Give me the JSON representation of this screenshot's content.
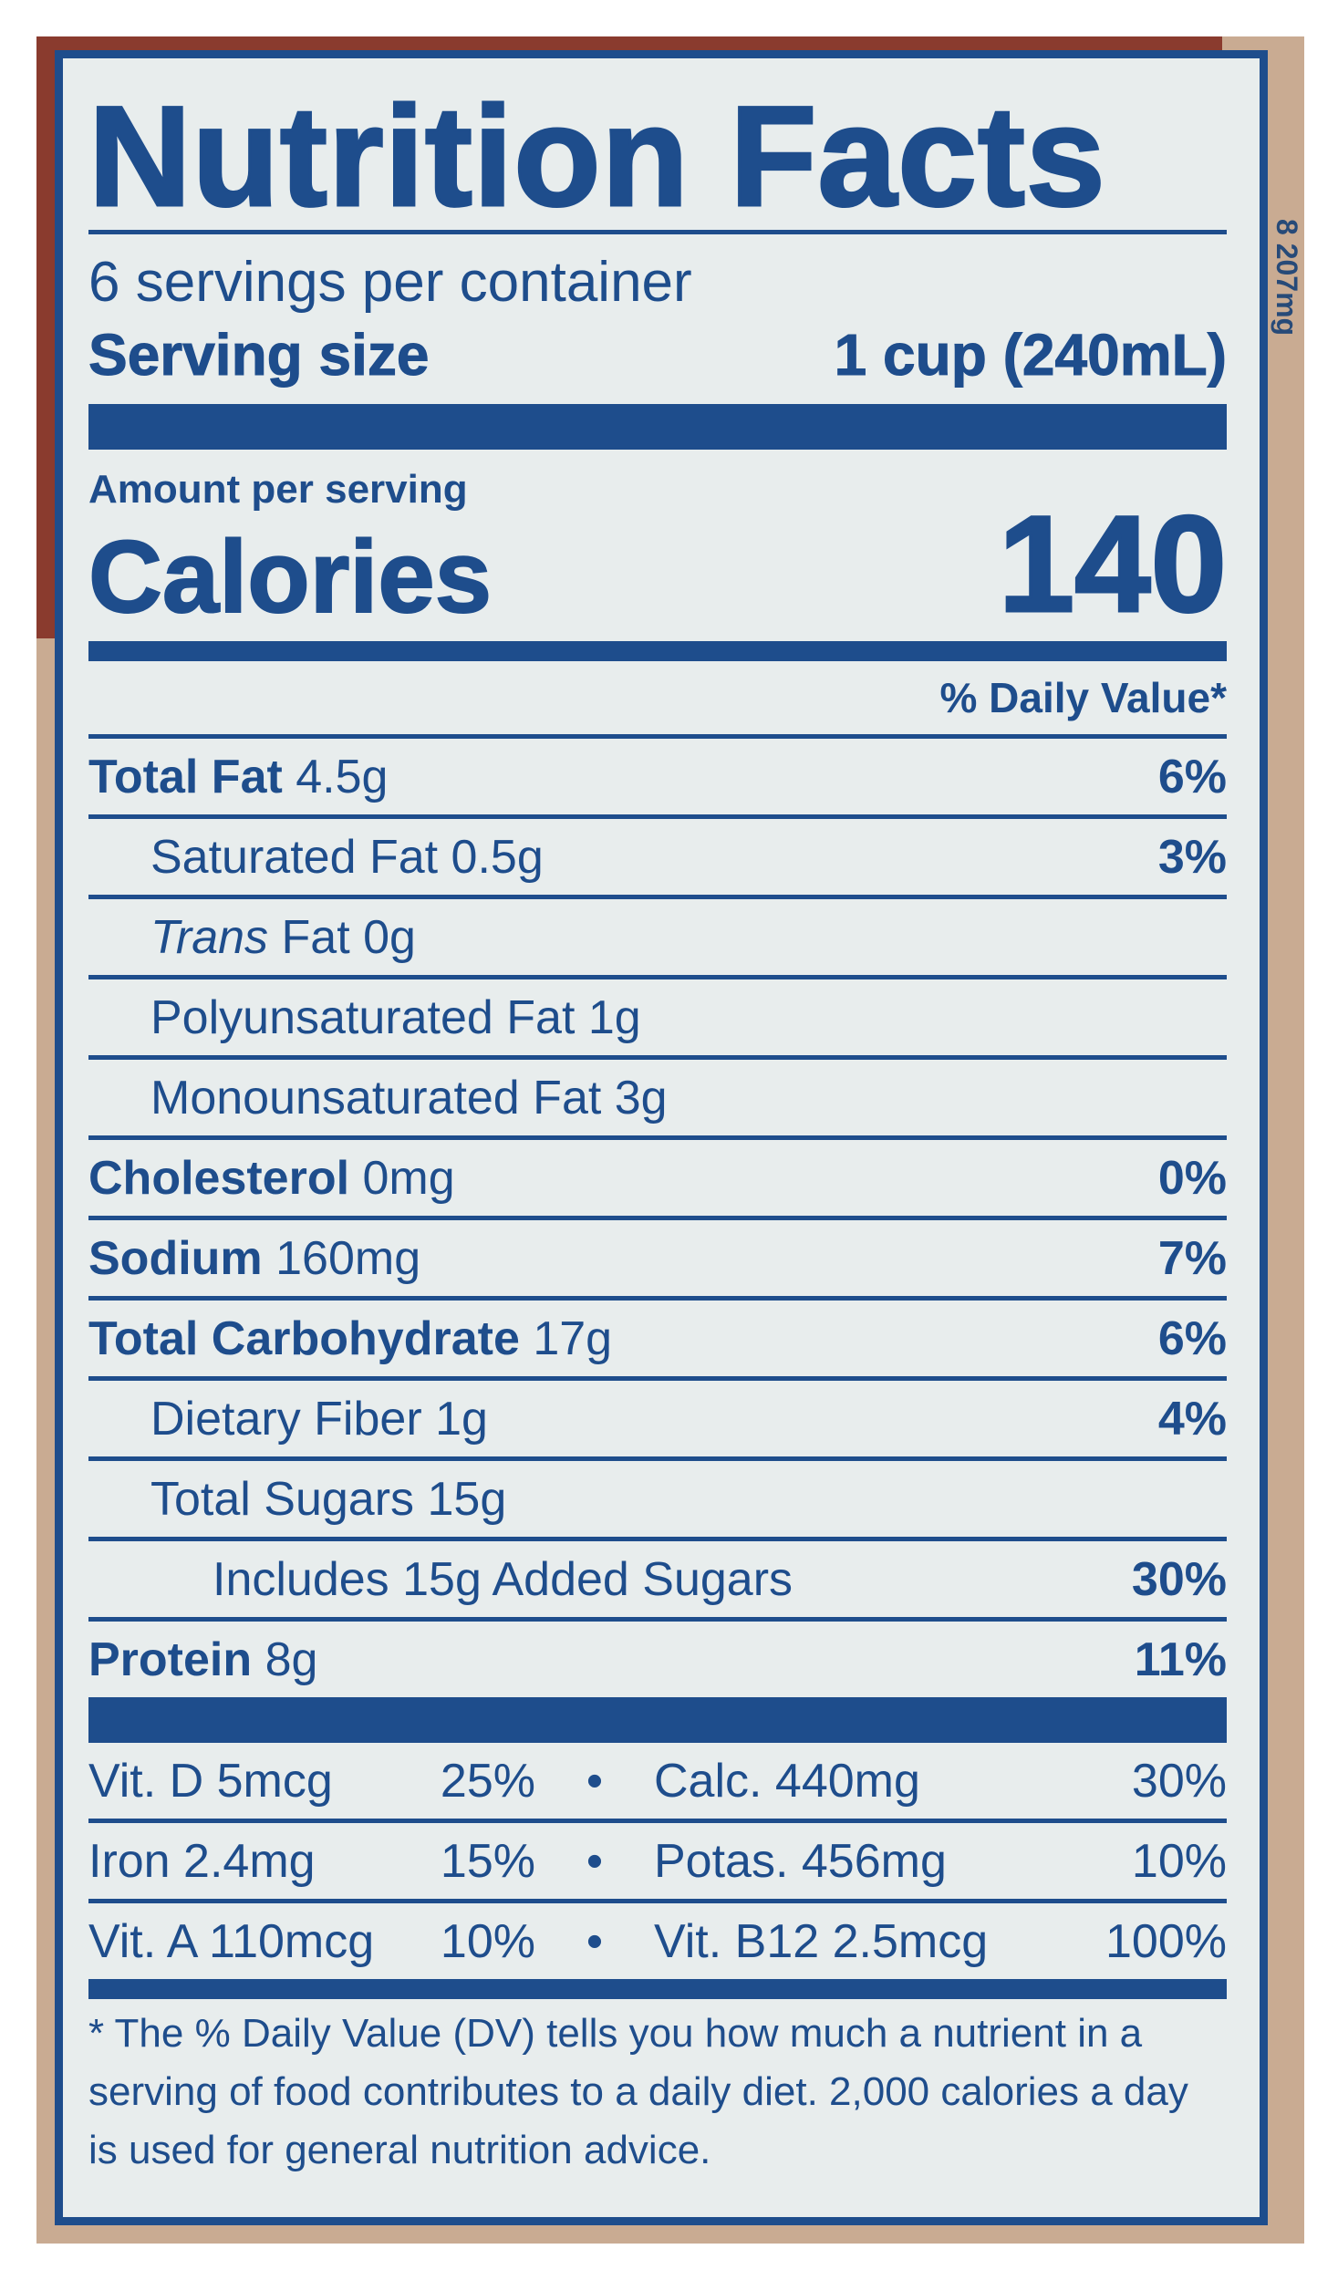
{
  "side_text": "8 207mg",
  "title": "Nutrition Facts",
  "servings_per_container": "6 servings per container",
  "serving_size_label": "Serving size",
  "serving_size_value": "1 cup (240mL)",
  "amount_per_serving": "Amount per serving",
  "calories_label": "Calories",
  "calories_value": "140",
  "dv_header": "% Daily Value*",
  "nutrients": [
    {
      "name": "Total Fat",
      "amount": "4.5g",
      "dv": "6%"
    },
    {
      "name": "Saturated Fat",
      "amount": "0.5g",
      "dv": "3%"
    },
    {
      "name": "Trans",
      "amount": "Fat 0g",
      "dv": ""
    },
    {
      "name": "Polyunsaturated Fat",
      "amount": "1g",
      "dv": ""
    },
    {
      "name": "Monounsaturated Fat",
      "amount": "3g",
      "dv": ""
    },
    {
      "name": "Cholesterol",
      "amount": "0mg",
      "dv": "0%"
    },
    {
      "name": "Sodium",
      "amount": "160mg",
      "dv": "7%"
    },
    {
      "name": "Total Carbohydrate",
      "amount": "17g",
      "dv": "6%"
    },
    {
      "name": "Dietary Fiber",
      "amount": "1g",
      "dv": "4%"
    },
    {
      "name": "Total Sugars",
      "amount": "15g",
      "dv": ""
    },
    {
      "name": "Includes 15g Added Sugars",
      "amount": "",
      "dv": "30%"
    },
    {
      "name": "Protein",
      "amount": "8g",
      "dv": "11%"
    }
  ],
  "vitamins": [
    {
      "a": "Vit. D 5mcg",
      "a_dv": "25%",
      "b": "Calc. 440mg",
      "b_dv": "30%"
    },
    {
      "a": "Iron 2.4mg",
      "a_dv": "15%",
      "b": "Potas. 456mg",
      "b_dv": "10%"
    },
    {
      "a": "Vit. A 110mcg",
      "a_dv": "10%",
      "b": "Vit. B12 2.5mcg",
      "b_dv": "100%"
    }
  ],
  "bullet": "•",
  "footnote": "* The % Daily Value (DV) tells you how much a nutrient in a serving of food contributes to a daily diet. 2,000 calories a day is used for general nutrition advice.",
  "colors": {
    "ink": "#1e4d8c",
    "label_bg": "#e8eded",
    "package_red": "#8a3b2e",
    "package_tan": "#c9ab92"
  }
}
